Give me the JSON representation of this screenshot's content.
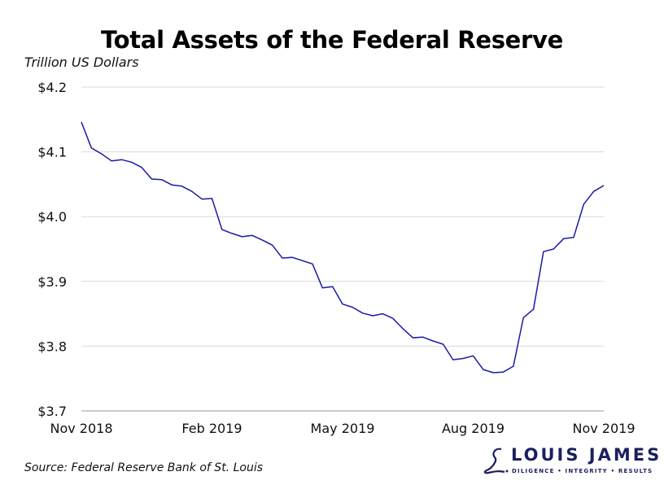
{
  "chart_data": {
    "type": "line",
    "title": "Total Assets of the Federal Reserve",
    "ylabel": "Trillion US Dollars",
    "xlabel": "",
    "ylim": [
      3.7,
      4.2
    ],
    "yticks": [
      3.7,
      3.8,
      3.9,
      4.0,
      4.1,
      4.2
    ],
    "ytick_labels": [
      "$3.7",
      "$3.8",
      "$3.9",
      "$4.0",
      "$4.1",
      "$4.2"
    ],
    "xlim": [
      "2018-11-07",
      "2019-11-06"
    ],
    "xticks": [
      "2018-11-07",
      "2019-02-06",
      "2019-05-08",
      "2019-08-07",
      "2019-11-06"
    ],
    "xtick_labels": [
      "Nov 2018",
      "Feb 2019",
      "May 2019",
      "Aug 2019",
      "Nov 2019"
    ],
    "grid": "horizontal",
    "line_color": "#1a1aa6",
    "x_start": "2018-11-07",
    "x_step_days": 7,
    "values": [
      4.146,
      4.106,
      4.097,
      4.086,
      4.088,
      4.084,
      4.076,
      4.058,
      4.057,
      4.049,
      4.047,
      4.039,
      4.027,
      4.028,
      3.98,
      3.974,
      3.969,
      3.971,
      3.964,
      3.956,
      3.936,
      3.937,
      3.932,
      3.927,
      3.89,
      3.892,
      3.865,
      3.86,
      3.851,
      3.847,
      3.85,
      3.843,
      3.827,
      3.813,
      3.814,
      3.808,
      3.803,
      3.779,
      3.781,
      3.785,
      3.764,
      3.759,
      3.76,
      3.769,
      3.844,
      3.857,
      3.946,
      3.95,
      3.966,
      3.968,
      4.019,
      4.039,
      4.048
    ]
  },
  "source": "Source: Federal Reserve Bank of St. Louis",
  "logo": {
    "name": "LOUIS JAMES",
    "tagline": "DILIGENCE  •  INTEGRITY  •  RESULTS",
    "color": "#1b1f5e"
  }
}
